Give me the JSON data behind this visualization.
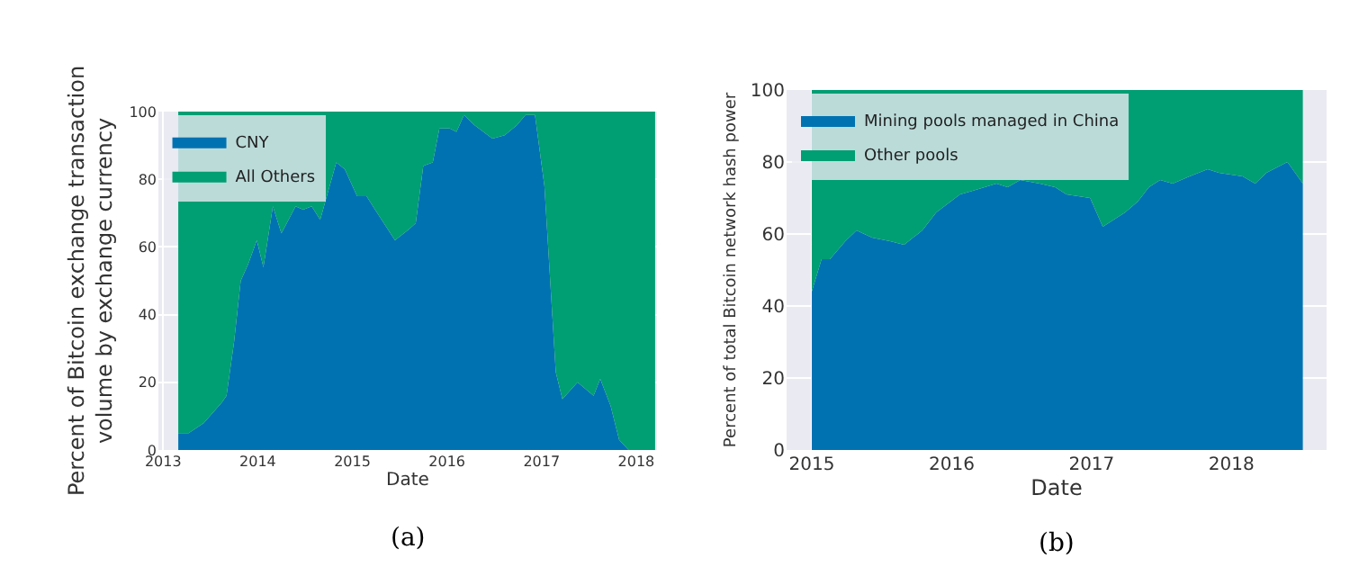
{
  "chart_data": [
    {
      "type": "area",
      "stacked": true,
      "xlabel": "Date",
      "ylabel": "Percent of Bitcoin exchange transaction\nvolume by exchange currency",
      "annotations": [
        "(a)"
      ],
      "x": [
        2013.16,
        2013.27,
        2013.43,
        2013.62,
        2013.67,
        2013.75,
        2013.82,
        2013.9,
        2013.99,
        2014.06,
        2014.16,
        2014.25,
        2014.4,
        2014.48,
        2014.57,
        2014.66,
        2014.83,
        2014.92,
        2015.05,
        2015.15,
        2015.24,
        2015.45,
        2015.59,
        2015.67,
        2015.75,
        2015.85,
        2015.92,
        2016.03,
        2016.1,
        2016.18,
        2016.29,
        2016.48,
        2016.61,
        2016.74,
        2016.83,
        2016.93,
        2017.03,
        2017.15,
        2017.22,
        2017.38,
        2017.55,
        2017.62,
        2017.73,
        2017.82,
        2017.92,
        2018.2
      ],
      "series": [
        {
          "name": "CNY",
          "color": "#0072b2",
          "values": [
            5,
            5,
            8,
            14,
            16,
            32,
            50,
            55,
            62,
            54,
            72,
            64,
            72,
            71,
            72,
            68,
            85,
            83,
            75,
            75,
            71,
            62,
            65,
            67,
            84,
            85,
            95,
            95,
            94,
            99,
            96,
            92,
            93,
            96,
            99,
            99,
            78,
            23,
            15,
            20,
            16,
            21,
            13,
            3,
            0,
            0
          ]
        },
        {
          "name": "All Others",
          "color": "#009e73",
          "values": [
            95,
            95,
            92,
            86,
            84,
            68,
            50,
            45,
            38,
            46,
            28,
            36,
            28,
            29,
            28,
            32,
            15,
            17,
            25,
            25,
            29,
            38,
            35,
            33,
            16,
            15,
            5,
            5,
            6,
            1,
            4,
            8,
            7,
            4,
            1,
            1,
            22,
            77,
            85,
            80,
            84,
            79,
            87,
            97,
            100,
            100
          ]
        }
      ],
      "xlim": [
        2012.95,
        2018.22
      ],
      "xticks": [
        2013,
        2014,
        2015,
        2016,
        2017,
        2018
      ],
      "ylim": [
        0,
        100
      ],
      "yticks": [
        0,
        20,
        40,
        60,
        80,
        100
      ],
      "grid": true,
      "legend": "top left"
    },
    {
      "type": "area",
      "stacked": true,
      "xlabel": "Date",
      "ylabel": "Percent of total Bitcoin network hash power",
      "annotations": [
        "(b)"
      ],
      "x": [
        2015.0,
        2015.07,
        2015.13,
        2015.24,
        2015.32,
        2015.43,
        2015.56,
        2015.66,
        2015.79,
        2015.89,
        2016.06,
        2016.15,
        2016.32,
        2016.4,
        2016.49,
        2016.63,
        2016.74,
        2016.82,
        2016.99,
        2017.08,
        2017.16,
        2017.24,
        2017.33,
        2017.41,
        2017.49,
        2017.58,
        2017.7,
        2017.83,
        2017.91,
        2018.08,
        2018.17,
        2018.25,
        2018.4,
        2018.51
      ],
      "series": [
        {
          "name": "Mining pools managed in China",
          "color": "#0072b2",
          "values": [
            44,
            53,
            53,
            58,
            61,
            59,
            58,
            57,
            61,
            66,
            71,
            72,
            74,
            73,
            75,
            74,
            73,
            71,
            70,
            62,
            64,
            66,
            69,
            73,
            75,
            74,
            76,
            78,
            77,
            76,
            74,
            77,
            80,
            74
          ]
        },
        {
          "name": "Other pools",
          "color": "#009e73",
          "values": [
            56,
            47,
            47,
            42,
            39,
            41,
            42,
            43,
            39,
            34,
            29,
            28,
            26,
            27,
            25,
            26,
            27,
            29,
            30,
            38,
            36,
            34,
            31,
            27,
            25,
            26,
            24,
            22,
            23,
            24,
            26,
            23,
            20,
            26
          ]
        }
      ],
      "xlim": [
        2014.82,
        2018.68
      ],
      "xticks": [
        2015,
        2016,
        2017,
        2018
      ],
      "ylim": [
        0,
        100
      ],
      "yticks": [
        0,
        20,
        40,
        60,
        80,
        100
      ],
      "grid": true,
      "legend": "top left"
    }
  ]
}
